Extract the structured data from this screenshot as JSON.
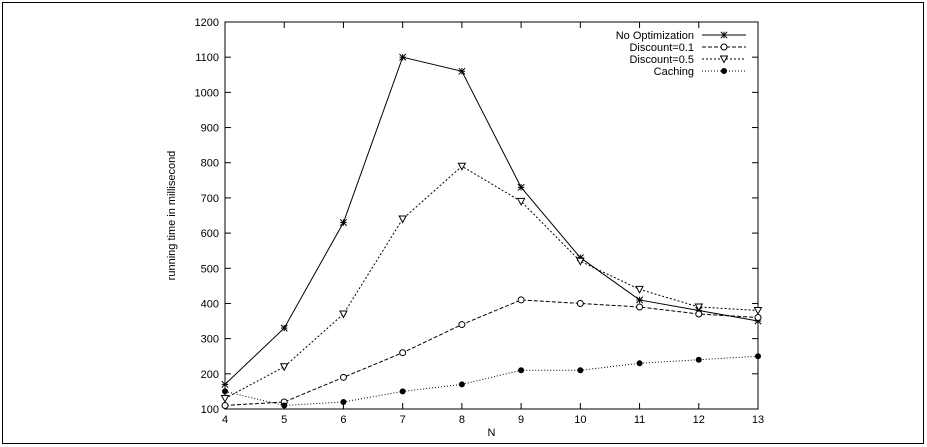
{
  "chart_data": {
    "type": "line",
    "title": "",
    "xlabel": "N",
    "ylabel": "running time in millisecond",
    "x": [
      4,
      5,
      6,
      7,
      8,
      9,
      10,
      11,
      12,
      13
    ],
    "xlim": [
      4,
      13
    ],
    "ylim": [
      100,
      1200
    ],
    "xticks": [
      "4",
      "5",
      "6",
      "7",
      "8",
      "9",
      "10",
      "11",
      "12",
      "13"
    ],
    "yticks": [
      "100",
      "200",
      "300",
      "400",
      "500",
      "600",
      "700",
      "800",
      "900",
      "1000",
      "1100",
      "1200"
    ],
    "grid": false,
    "legend_position": "top-right",
    "series": [
      {
        "name": "No Optimization",
        "marker": "star",
        "line": "solid",
        "values": [
          170,
          330,
          630,
          1100,
          1060,
          730,
          530,
          410,
          380,
          350
        ]
      },
      {
        "name": "Discount=0.1",
        "marker": "open-circle",
        "line": "dashed",
        "values": [
          110,
          120,
          190,
          260,
          340,
          410,
          400,
          390,
          370,
          360
        ]
      },
      {
        "name": "Discount=0.5",
        "marker": "down-triangle",
        "line": "dotted",
        "values": [
          130,
          220,
          370,
          640,
          790,
          690,
          520,
          440,
          390,
          380
        ]
      },
      {
        "name": "Caching",
        "marker": "filled-circle",
        "line": "fine-dotted",
        "values": [
          150,
          110,
          120,
          150,
          170,
          210,
          210,
          230,
          240,
          250
        ]
      }
    ],
    "colors": {
      "ink": "#000000",
      "background": "#ffffff"
    }
  }
}
